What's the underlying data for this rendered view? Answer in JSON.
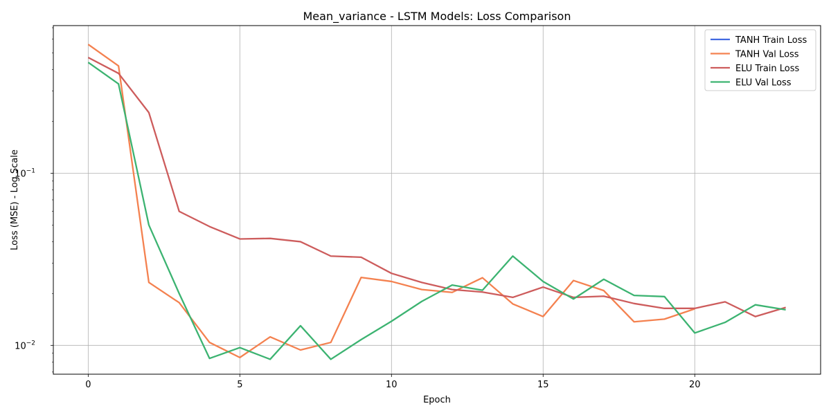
{
  "chart_data": {
    "type": "line",
    "title": "Mean_variance - LSTM Models: Loss Comparison",
    "xlabel": "Epoch",
    "ylabel": "Loss (MSE) - Log Scale",
    "yscale": "log",
    "xlim": [
      -1.15,
      24.15
    ],
    "ylim": [
      0.0068,
      0.72
    ],
    "x_ticks": [
      0,
      5,
      10,
      15,
      20
    ],
    "y_ticks": [
      {
        "value": 0.01,
        "base": "10",
        "exp": "−2"
      },
      {
        "value": 0.1,
        "base": "10",
        "exp": "−1"
      }
    ],
    "grid": true,
    "legend_position": "top-right",
    "x": [
      0,
      1,
      2,
      3,
      4,
      5,
      6,
      7,
      8,
      9,
      10,
      11,
      12,
      13,
      14,
      15,
      16,
      17,
      18,
      19,
      20,
      21,
      22,
      23
    ],
    "series": [
      {
        "name": "TANH Train Loss",
        "color": "#4169e1",
        "values": [
          null,
          null,
          null,
          null,
          null,
          null,
          null,
          null,
          null,
          null,
          null,
          null,
          null,
          null,
          null,
          null,
          null,
          null,
          null,
          null,
          null,
          null,
          null,
          null
        ]
      },
      {
        "name": "TANH Val Loss",
        "color": "#f4814f",
        "values": [
          0.56,
          0.42,
          0.0232,
          0.0177,
          0.0104,
          0.0085,
          0.0112,
          0.0094,
          0.0104,
          0.0248,
          0.0235,
          0.0211,
          0.0203,
          0.0247,
          0.0174,
          0.0147,
          0.0238,
          0.0208,
          0.0137,
          0.0142,
          0.0163,
          null,
          null,
          null
        ]
      },
      {
        "name": "ELU Train Loss",
        "color": "#cd5c5c",
        "values": [
          0.47,
          0.38,
          0.225,
          0.06,
          0.049,
          0.0415,
          0.0418,
          0.04,
          0.033,
          0.0325,
          0.0262,
          0.0232,
          0.0211,
          0.0204,
          0.019,
          0.0218,
          0.019,
          0.0193,
          0.0175,
          0.0164,
          0.0164,
          0.0179,
          0.0147,
          0.0166
        ]
      },
      {
        "name": "ELU Val Loss",
        "color": "#3cb371",
        "values": [
          0.44,
          0.33,
          0.05,
          0.02,
          0.0084,
          0.0097,
          0.0083,
          0.013,
          0.0083,
          0.0108,
          0.0138,
          0.018,
          0.0224,
          0.0209,
          0.033,
          0.0235,
          0.0186,
          0.0242,
          0.0195,
          0.0192,
          0.0118,
          0.0136,
          0.0172,
          0.0161
        ]
      }
    ]
  }
}
